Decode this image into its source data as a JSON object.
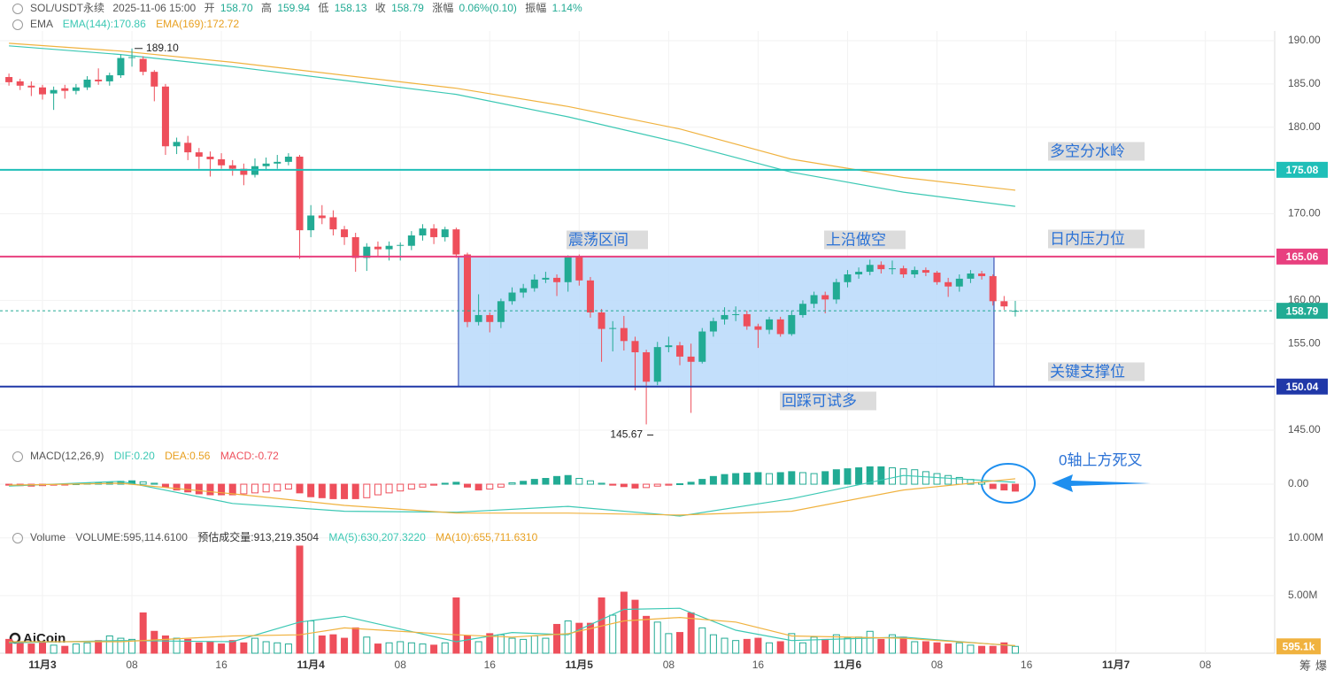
{
  "header": {
    "symbol": "SOL/USDT永续",
    "time": "2025-11-06 15:00",
    "fields": [
      {
        "label": "开",
        "value": "158.70"
      },
      {
        "label": "高",
        "value": "159.94"
      },
      {
        "label": "低",
        "value": "158.13"
      },
      {
        "label": "收",
        "value": "158.79"
      },
      {
        "label": "涨幅",
        "value": "0.06%(0.10)"
      },
      {
        "label": "振幅",
        "value": "1.14%"
      }
    ]
  },
  "logo": "AiCoin",
  "footer_buttons": [
    "筹",
    "爆"
  ],
  "chart_data": [
    {
      "type": "candlestick",
      "title": "EMA",
      "xlim": [
        -0.8,
        113.2
      ],
      "xticks": [
        {
          "value": 3,
          "label": "11月3"
        },
        {
          "value": 11,
          "label": "08"
        },
        {
          "value": 19,
          "label": "16"
        },
        {
          "value": 27,
          "label": "11月4"
        },
        {
          "value": 35,
          "label": "08"
        },
        {
          "value": 43,
          "label": "16"
        },
        {
          "value": 51,
          "label": "11月5"
        },
        {
          "value": 59,
          "label": "08"
        },
        {
          "value": 67,
          "label": "16"
        },
        {
          "value": 75,
          "label": "11月6"
        },
        {
          "value": 83,
          "label": "08"
        },
        {
          "value": 91,
          "label": "16"
        },
        {
          "value": 99,
          "label": "11月7"
        },
        {
          "value": 107,
          "label": "08"
        }
      ],
      "ylim": [
        143.57,
        191.12
      ],
      "yticks": [
        {
          "value": 145,
          "label": "145.00"
        },
        {
          "value": 150,
          "label": "150.00"
        },
        {
          "value": 155,
          "label": "155.00"
        },
        {
          "value": 160,
          "label": "160.00"
        },
        {
          "value": 165,
          "label": "165.00"
        },
        {
          "value": 170,
          "label": "170.00"
        },
        {
          "value": 175,
          "label": "175.00"
        },
        {
          "value": 180,
          "label": "180.00"
        },
        {
          "value": 185,
          "label": "185.00"
        },
        {
          "value": 190,
          "label": "190.00"
        }
      ],
      "grid": true,
      "up_color": "#22ab94",
      "down_color": "#ee4f5b",
      "open": [
        185.8,
        185.3,
        184.8,
        184.6,
        183.9,
        184.5,
        184.2,
        184.6,
        185.5,
        185.3,
        186.0,
        188.0,
        187.9,
        186.4,
        184.7,
        177.8,
        178.2,
        177.1,
        176.6,
        176.3,
        175.6,
        175.2,
        174.5,
        175.5,
        175.8,
        176.0,
        176.6,
        168.1,
        169.8,
        169.6,
        168.2,
        167.3,
        164.9,
        166.2,
        165.9,
        166.3,
        166.3,
        167.5,
        168.3,
        167.3,
        168.2,
        165.3,
        157.5,
        158.3,
        157.5,
        159.9,
        160.9,
        161.4,
        162.4,
        162.6,
        162.1,
        165.0,
        162.3,
        158.6,
        156.7,
        156.8,
        155.3,
        154.0,
        150.6,
        154.6,
        154.8,
        153.5,
        152.9,
        156.4,
        157.8,
        158.3,
        158.4,
        157.0,
        156.6,
        157.8,
        156.1,
        158.3,
        159.6,
        160.6,
        160.1,
        162.1,
        163.0,
        163.3,
        164.1,
        163.6,
        163.7,
        163.0,
        163.5,
        163.2,
        162.1,
        161.6,
        162.5,
        163.1,
        162.8,
        159.9,
        158.7
      ],
      "high": [
        186.2,
        185.6,
        185.3,
        184.9,
        184.7,
        184.9,
        185.0,
        185.9,
        186.8,
        186.3,
        188.4,
        189.1,
        188.2,
        186.6,
        185.0,
        178.8,
        179.0,
        177.6,
        177.2,
        177.0,
        176.2,
        175.8,
        176.4,
        176.5,
        176.8,
        177.0,
        176.8,
        171.0,
        171.0,
        170.4,
        168.6,
        167.8,
        166.6,
        166.8,
        166.8,
        166.7,
        168.0,
        168.8,
        168.8,
        168.5,
        168.4,
        165.5,
        160.7,
        158.6,
        160.2,
        161.5,
        161.9,
        163.0,
        163.3,
        163.0,
        165.2,
        165.3,
        162.7,
        159.0,
        157.6,
        158.2,
        155.8,
        154.3,
        155.2,
        155.8,
        155.2,
        155.0,
        156.8,
        158.0,
        159.2,
        159.3,
        158.8,
        157.3,
        158.1,
        158.1,
        158.8,
        160.0,
        161.0,
        161.0,
        162.5,
        163.5,
        163.8,
        164.7,
        164.5,
        164.6,
        164.0,
        163.9,
        163.8,
        163.4,
        162.6,
        163.0,
        163.5,
        163.4,
        163.0,
        160.5,
        159.94
      ],
      "low": [
        184.8,
        184.3,
        183.6,
        183.2,
        182.0,
        183.3,
        183.8,
        184.3,
        184.9,
        184.8,
        185.7,
        187.0,
        186.0,
        183.0,
        176.8,
        176.9,
        176.2,
        175.2,
        174.3,
        175.2,
        174.4,
        173.3,
        174.2,
        175.0,
        175.2,
        175.6,
        164.8,
        167.3,
        168.8,
        167.5,
        166.4,
        163.3,
        163.4,
        165.0,
        164.6,
        164.6,
        165.8,
        166.9,
        166.5,
        166.8,
        164.9,
        156.9,
        157.1,
        156.3,
        156.8,
        159.5,
        160.3,
        161.0,
        162.0,
        160.5,
        161.0,
        161.7,
        158.0,
        152.9,
        154.1,
        154.2,
        149.6,
        145.67,
        150.2,
        154.0,
        152.5,
        147.0,
        152.7,
        155.8,
        157.2,
        157.6,
        156.6,
        154.5,
        156.1,
        155.8,
        155.9,
        158.0,
        159.1,
        158.5,
        159.6,
        161.5,
        162.5,
        162.9,
        163.1,
        163.0,
        162.6,
        162.6,
        162.8,
        161.8,
        160.4,
        161.0,
        162.0,
        162.4,
        159.4,
        158.9,
        158.13
      ],
      "close": [
        185.2,
        184.8,
        184.6,
        183.8,
        184.3,
        184.2,
        184.6,
        185.5,
        185.3,
        186.0,
        188.0,
        188.1,
        186.4,
        184.7,
        177.8,
        178.3,
        177.1,
        176.6,
        176.3,
        175.6,
        175.2,
        174.5,
        175.5,
        175.8,
        176.0,
        176.6,
        168.1,
        169.8,
        169.5,
        168.2,
        167.3,
        164.9,
        166.2,
        165.9,
        166.3,
        166.4,
        167.5,
        168.3,
        167.3,
        168.2,
        165.3,
        157.5,
        158.3,
        157.5,
        159.9,
        160.9,
        161.4,
        162.4,
        162.6,
        162.1,
        165.0,
        162.3,
        158.6,
        156.7,
        156.8,
        155.3,
        154.0,
        150.6,
        154.6,
        154.8,
        153.5,
        152.9,
        156.4,
        157.6,
        158.3,
        158.4,
        157.0,
        156.6,
        157.8,
        156.1,
        158.3,
        159.6,
        160.6,
        160.1,
        162.1,
        163.0,
        163.3,
        164.1,
        163.6,
        163.7,
        163.0,
        163.5,
        163.2,
        162.1,
        161.6,
        162.5,
        163.1,
        162.8,
        159.9,
        159.3,
        158.79
      ],
      "series": [
        {
          "name": "EMA(144):170.86",
          "color": "#3cc8b4",
          "x": [
            0,
            10,
            20,
            30,
            40,
            50,
            60,
            70,
            80,
            90
          ],
          "values": [
            189.4,
            188.4,
            187.0,
            185.4,
            183.8,
            181.2,
            178.2,
            174.8,
            172.5,
            170.86
          ]
        },
        {
          "name": "EMA(169):172.72",
          "color": "#f0b23f",
          "x": [
            0,
            10,
            20,
            30,
            40,
            50,
            60,
            70,
            80,
            90
          ],
          "values": [
            189.7,
            188.8,
            187.5,
            186.0,
            184.5,
            182.4,
            179.8,
            176.3,
            174.2,
            172.72
          ]
        }
      ],
      "levels": [
        {
          "value": 175.08,
          "color": "#1fbfb8"
        },
        {
          "value": 165.06,
          "color": "#e8407f"
        },
        {
          "value": 150.04,
          "color": "#2038a8"
        }
      ],
      "last_price": 158.79,
      "last_color": "#22ab94",
      "range_box": {
        "x": [
          40.2,
          88.1
        ],
        "color": "#bcdcfb"
      },
      "extremes": [
        {
          "index": 11,
          "value": 189.1,
          "label": "189.10"
        },
        {
          "index": 57,
          "value": 145.67,
          "label": "145.67"
        }
      ],
      "annotations": [
        "震荡区间",
        "上沿做空",
        "多空分水岭",
        "日内压力位",
        "关键支撑位",
        "回踩可试多",
        "0轴上方死叉"
      ]
    },
    {
      "type": "macd",
      "title": "MACD(12,26,9)",
      "ylim": [
        -4.4,
        3.4
      ],
      "yticks": [
        {
          "value": 0,
          "label": "0.00"
        }
      ],
      "histogram": {
        "name": "MACD:-0.72",
        "values": [
          -0.1,
          -0.15,
          -0.2,
          -0.15,
          -0.1,
          -0.05,
          0.05,
          0.1,
          0.15,
          0.2,
          0.3,
          0.35,
          0.25,
          0.1,
          -0.3,
          -0.6,
          -0.8,
          -1.0,
          -1.1,
          -1.1,
          -1.1,
          -1.0,
          -0.9,
          -0.8,
          -0.7,
          -0.5,
          -0.9,
          -1.3,
          -1.4,
          -1.5,
          -1.5,
          -1.5,
          -1.4,
          -1.1,
          -0.9,
          -0.7,
          -0.5,
          -0.3,
          -0.1,
          0.1,
          0.2,
          -0.3,
          -0.6,
          -0.5,
          -0.3,
          0.15,
          0.3,
          0.5,
          0.6,
          0.8,
          0.9,
          0.6,
          0.35,
          0.1,
          -0.1,
          -0.25,
          -0.4,
          -0.35,
          -0.2,
          -0.1,
          0.05,
          0.2,
          0.5,
          0.8,
          1.0,
          1.1,
          1.15,
          1.2,
          1.1,
          1.2,
          1.3,
          1.2,
          1.1,
          1.3,
          1.5,
          1.6,
          1.7,
          1.8,
          1.8,
          1.7,
          1.6,
          1.5,
          1.3,
          1.1,
          0.9,
          0.7,
          0.5,
          0.2,
          -0.45,
          -0.6,
          -0.72
        ]
      },
      "series": [
        {
          "name": "DIF:0.20",
          "color": "#3cc8b4",
          "x": [
            0,
            10,
            20,
            30,
            40,
            50,
            60,
            70,
            80,
            90
          ],
          "values": [
            -0.2,
            0.3,
            -2.0,
            -2.8,
            -2.9,
            -2.3,
            -3.3,
            -1.5,
            0.9,
            0.2
          ]
        },
        {
          "name": "DEA:0.56",
          "color": "#f0b23f",
          "x": [
            0,
            10,
            20,
            30,
            40,
            50,
            60,
            70,
            80,
            90
          ],
          "values": [
            -0.1,
            0.1,
            -1.0,
            -2.2,
            -3.0,
            -3.0,
            -3.2,
            -2.8,
            -0.6,
            0.56
          ]
        }
      ]
    },
    {
      "type": "volume",
      "title": "Volume",
      "ylim": [
        0,
        10.6
      ],
      "yticks": [
        {
          "value": 5,
          "label": "5.00M"
        },
        {
          "value": 10,
          "label": "10.00M"
        }
      ],
      "bars": {
        "name": "VOLUME:595,114.6100",
        "values": [
          1.2,
          0.9,
          0.8,
          1.0,
          0.7,
          0.6,
          0.8,
          0.9,
          1.1,
          1.5,
          1.3,
          1.2,
          3.5,
          1.9,
          1.5,
          1.3,
          1.2,
          0.9,
          1.0,
          0.8,
          1.1,
          0.9,
          1.3,
          1.0,
          0.9,
          0.8,
          9.3,
          2.8,
          1.5,
          1.6,
          1.3,
          2.2,
          1.4,
          0.8,
          0.9,
          1.0,
          0.9,
          0.8,
          0.7,
          0.9,
          4.8,
          1.5,
          1.0,
          1.7,
          1.6,
          1.3,
          1.2,
          1.5,
          1.3,
          2.5,
          2.8,
          2.6,
          2.6,
          4.8,
          3.3,
          5.3,
          4.6,
          3.2,
          2.7,
          1.7,
          1.8,
          3.5,
          2.2,
          1.6,
          1.3,
          1.1,
          1.2,
          1.3,
          0.9,
          1.0,
          1.7,
          0.9,
          1.4,
          1.2,
          1.6,
          1.3,
          1.4,
          1.9,
          1.2,
          1.6,
          1.4,
          1.0,
          1.0,
          0.9,
          0.8,
          0.9,
          0.7,
          0.6,
          0.6,
          0.9,
          0.5951
        ]
      },
      "estimate": "预估成交量:913,219.3504",
      "series": [
        {
          "name": "MA(5):630,207.3220",
          "color": "#3cc8b4",
          "x": [
            0,
            10,
            20,
            26,
            30,
            40,
            45,
            50,
            55,
            60,
            65,
            70,
            80,
            90
          ],
          "values": [
            0.9,
            1.1,
            1.0,
            2.7,
            3.2,
            1.0,
            1.8,
            1.6,
            3.8,
            3.9,
            2.0,
            1.1,
            1.4,
            0.63
          ]
        },
        {
          "name": "MA(10):655,711.6310",
          "color": "#f0b23f",
          "x": [
            0,
            10,
            20,
            26,
            30,
            40,
            45,
            50,
            55,
            60,
            65,
            70,
            80,
            90
          ],
          "values": [
            1.0,
            1.0,
            1.5,
            1.6,
            2.2,
            1.6,
            1.4,
            1.7,
            2.8,
            3.1,
            2.7,
            1.5,
            1.3,
            0.66
          ]
        }
      ],
      "current": {
        "value": 0.5951,
        "label": "595.1k",
        "color": "#f0b23f"
      }
    }
  ]
}
